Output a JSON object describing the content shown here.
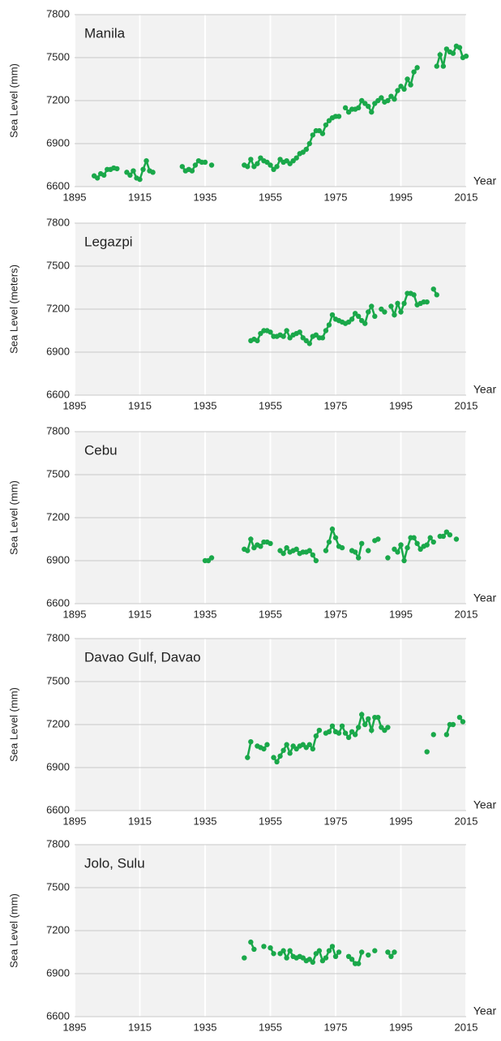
{
  "chart_data": [
    {
      "type": "line",
      "title": "Manila",
      "y_label": "Sea Level (mm)",
      "x_label": "Year",
      "xlim": [
        1895,
        2015
      ],
      "xticks": [
        1895,
        1915,
        1935,
        1955,
        1975,
        1995,
        2015
      ],
      "ylim": [
        6600,
        7800
      ],
      "yticks": [
        6600,
        6900,
        7200,
        7500,
        7800
      ],
      "grid": true,
      "series": [
        {
          "name": "Manila",
          "color": "#1aa84a",
          "x": [
            1901,
            1902,
            1903,
            1904,
            1905,
            1906,
            1907,
            1908,
            1909,
            1911,
            1912,
            1913,
            1914,
            1915,
            1916,
            1917,
            1918,
            1919,
            1923,
            1928,
            1929,
            1930,
            1931,
            1932,
            1933,
            1934,
            1935,
            1936,
            1937,
            1942,
            1947,
            1948,
            1949,
            1950,
            1951,
            1952,
            1953,
            1954,
            1955,
            1956,
            1957,
            1958,
            1959,
            1960,
            1961,
            1962,
            1963,
            1964,
            1965,
            1966,
            1967,
            1968,
            1969,
            1970,
            1971,
            1972,
            1973,
            1974,
            1975,
            1976,
            1977,
            1978,
            1979,
            1980,
            1981,
            1982,
            1983,
            1984,
            1985,
            1986,
            1987,
            1988,
            1989,
            1990,
            1991,
            1992,
            1993,
            1994,
            1995,
            1996,
            1997,
            1998,
            1999,
            2000,
            2003,
            2006,
            2007,
            2008,
            2009,
            2010,
            2011,
            2012,
            2013,
            2014,
            2015
          ],
          "values": [
            6675,
            6660,
            6690,
            6680,
            6720,
            6720,
            6730,
            6725,
            null,
            6700,
            6680,
            6710,
            6660,
            6650,
            6720,
            6780,
            6710,
            6700,
            null,
            6740,
            6710,
            6720,
            6710,
            6750,
            6780,
            6770,
            6770,
            null,
            6750,
            null,
            6750,
            6740,
            6790,
            6740,
            6760,
            6800,
            6780,
            6770,
            6750,
            6720,
            6740,
            6790,
            6770,
            6780,
            6760,
            6780,
            6800,
            6830,
            6840,
            6860,
            6900,
            6960,
            6990,
            6990,
            6970,
            7030,
            7060,
            7080,
            7090,
            7090,
            null,
            7150,
            7120,
            7140,
            7140,
            7150,
            7200,
            7180,
            7160,
            7120,
            7180,
            7200,
            7220,
            7190,
            7200,
            7230,
            7210,
            7270,
            7300,
            7280,
            7350,
            7310,
            7400,
            7430,
            null,
            7440,
            7520,
            7440,
            7560,
            7540,
            7530,
            7580,
            7570,
            7500,
            7510
          ]
        }
      ]
    },
    {
      "type": "line",
      "title": "Legazpi",
      "y_label": "Sea Level (meters)",
      "x_label": "Year",
      "xlim": [
        1895,
        2015
      ],
      "xticks": [
        1895,
        1915,
        1935,
        1955,
        1975,
        1995,
        2015
      ],
      "ylim": [
        6600,
        7800
      ],
      "yticks": [
        6600,
        6900,
        7200,
        7500,
        7800
      ],
      "grid": true,
      "series": [
        {
          "name": "Legazpi",
          "color": "#1aa84a",
          "x": [
            1949,
            1950,
            1951,
            1952,
            1953,
            1954,
            1955,
            1956,
            1957,
            1958,
            1959,
            1960,
            1961,
            1962,
            1963,
            1964,
            1965,
            1966,
            1967,
            1968,
            1969,
            1970,
            1971,
            1972,
            1973,
            1974,
            1975,
            1976,
            1977,
            1978,
            1979,
            1980,
            1981,
            1982,
            1983,
            1984,
            1985,
            1986,
            1987,
            1988,
            1989,
            1990,
            1991,
            1992,
            1993,
            1994,
            1995,
            1996,
            1997,
            1998,
            1999,
            2000,
            2001,
            2002,
            2003,
            2004,
            2005,
            2006
          ],
          "values": [
            6980,
            6990,
            6980,
            7030,
            7050,
            7050,
            7040,
            7010,
            7010,
            7020,
            7010,
            7050,
            7000,
            7020,
            7030,
            7040,
            7000,
            6980,
            6960,
            7010,
            7020,
            7000,
            7000,
            7050,
            7090,
            7160,
            7130,
            7120,
            7110,
            7100,
            7110,
            7130,
            7170,
            7150,
            7120,
            7100,
            7180,
            7220,
            7150,
            null,
            7200,
            7180,
            null,
            7220,
            7160,
            7240,
            7180,
            7240,
            7310,
            7310,
            7300,
            7230,
            7240,
            7250,
            7250,
            null,
            7340,
            7300
          ]
        }
      ]
    },
    {
      "type": "line",
      "title": "Cebu",
      "y_label": "Sea Level (mm)",
      "x_label": "Year",
      "xlim": [
        1895,
        2015
      ],
      "xticks": [
        1895,
        1915,
        1935,
        1955,
        1975,
        1995,
        2015
      ],
      "ylim": [
        6600,
        7800
      ],
      "yticks": [
        6600,
        6900,
        7200,
        7500,
        7800
      ],
      "grid": true,
      "series": [
        {
          "name": "Cebu",
          "color": "#1aa84a",
          "x": [
            1935,
            1936,
            1937,
            1940,
            1947,
            1948,
            1949,
            1950,
            1951,
            1952,
            1953,
            1954,
            1955,
            1956,
            1958,
            1959,
            1960,
            1961,
            1962,
            1963,
            1964,
            1965,
            1966,
            1967,
            1968,
            1969,
            1970,
            1972,
            1973,
            1974,
            1975,
            1976,
            1977,
            1978,
            1980,
            1981,
            1982,
            1983,
            1984,
            1985,
            1986,
            1987,
            1988,
            1989,
            1991,
            1992,
            1993,
            1994,
            1995,
            1996,
            1997,
            1998,
            1999,
            2000,
            2001,
            2002,
            2003,
            2004,
            2005,
            2006,
            2007,
            2008,
            2009,
            2010,
            2011,
            2012
          ],
          "values": [
            6900,
            6900,
            6920,
            null,
            6980,
            6970,
            7050,
            6990,
            7010,
            7000,
            7030,
            7030,
            7020,
            null,
            6970,
            6950,
            6990,
            6960,
            6970,
            6980,
            6950,
            6960,
            6960,
            6970,
            6940,
            6900,
            null,
            6970,
            7030,
            7120,
            7060,
            7000,
            6990,
            null,
            6970,
            6960,
            6920,
            7020,
            null,
            6970,
            null,
            7040,
            7050,
            null,
            6920,
            null,
            6980,
            6960,
            7010,
            6900,
            6990,
            7060,
            7060,
            7020,
            6980,
            7000,
            7010,
            7060,
            7030,
            null,
            7070,
            7070,
            7100,
            7080,
            null,
            7050
          ]
        }
      ]
    },
    {
      "type": "line",
      "title": "Davao Gulf, Davao",
      "y_label": "Sea Level (mm)",
      "x_label": "Year",
      "xlim": [
        1895,
        2015
      ],
      "xticks": [
        1895,
        1915,
        1935,
        1955,
        1975,
        1995,
        2015
      ],
      "ylim": [
        6600,
        7800
      ],
      "yticks": [
        6600,
        6900,
        7200,
        7500,
        7800
      ],
      "grid": true,
      "series": [
        {
          "name": "Davao Gulf, Davao",
          "color": "#1aa84a",
          "x": [
            1948,
            1949,
            1950,
            1951,
            1952,
            1953,
            1954,
            1955,
            1956,
            1957,
            1958,
            1959,
            1960,
            1961,
            1962,
            1963,
            1964,
            1965,
            1966,
            1967,
            1968,
            1969,
            1970,
            1971,
            1972,
            1973,
            1974,
            1975,
            1976,
            1977,
            1978,
            1979,
            1980,
            1981,
            1982,
            1983,
            1984,
            1985,
            1986,
            1987,
            1988,
            1989,
            1990,
            1991,
            1992,
            2003,
            2004,
            2005,
            2006,
            2009,
            2010,
            2011,
            2012,
            2013,
            2014
          ],
          "values": [
            6970,
            7080,
            null,
            7050,
            7040,
            7030,
            7060,
            null,
            6970,
            6940,
            6980,
            7020,
            7060,
            7000,
            7050,
            7030,
            7050,
            7060,
            7040,
            7060,
            7030,
            7120,
            7160,
            null,
            7140,
            7150,
            7190,
            7150,
            7140,
            7190,
            7140,
            7110,
            7150,
            7130,
            7180,
            7270,
            7200,
            7240,
            7160,
            7250,
            7250,
            7180,
            7160,
            7180,
            null,
            7010,
            null,
            7130,
            null,
            7130,
            7200,
            7200,
            null,
            7250,
            7220
          ]
        }
      ]
    },
    {
      "type": "line",
      "title": "Jolo, Sulu",
      "y_label": "Sea Level (mm)",
      "x_label": "Year",
      "xlim": [
        1895,
        2015
      ],
      "xticks": [
        1895,
        1915,
        1935,
        1955,
        1975,
        1995,
        2015
      ],
      "ylim": [
        6600,
        7800
      ],
      "yticks": [
        6600,
        6900,
        7200,
        7500,
        7800
      ],
      "grid": true,
      "series": [
        {
          "name": "Jolo, Sulu",
          "color": "#1aa84a",
          "x": [
            1947,
            1948,
            1949,
            1950,
            1951,
            1953,
            1954,
            1955,
            1956,
            1957,
            1958,
            1959,
            1960,
            1961,
            1962,
            1963,
            1964,
            1965,
            1966,
            1967,
            1968,
            1969,
            1970,
            1971,
            1972,
            1973,
            1974,
            1975,
            1976,
            1977,
            1979,
            1980,
            1981,
            1982,
            1983,
            1984,
            1985,
            1986,
            1987,
            1988,
            1991,
            1992,
            1993
          ],
          "values": [
            7010,
            null,
            7120,
            7070,
            null,
            7090,
            null,
            7080,
            7040,
            null,
            7040,
            7060,
            7010,
            7060,
            7020,
            7010,
            7020,
            7010,
            6990,
            7000,
            6980,
            7040,
            7060,
            6990,
            7010,
            7060,
            7090,
            7020,
            7050,
            null,
            7020,
            7000,
            6970,
            6970,
            7050,
            null,
            7030,
            null,
            7060,
            null,
            7050,
            7020,
            7050
          ]
        }
      ]
    }
  ]
}
